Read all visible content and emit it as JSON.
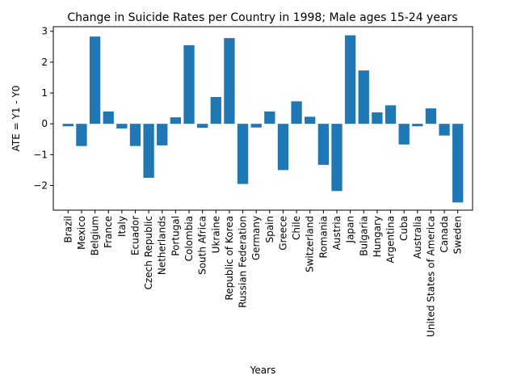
{
  "chart_data": {
    "type": "bar",
    "title": "Change in Suicide Rates per Country in 1998; Male ages 15-24 years",
    "xlabel": "Years",
    "ylabel": "ATE = Y1 - Y0",
    "ylim": [
      -2.8,
      3.15
    ],
    "yticks": [
      -2,
      -1,
      0,
      1,
      2,
      3
    ],
    "ytick_labels": [
      "−2",
      "−1",
      "0",
      "1",
      "2",
      "3"
    ],
    "grid": false,
    "bar_color": "#1f77b4",
    "categories": [
      "Brazil",
      "Mexico",
      "Belgium",
      "France",
      "Italy",
      "Ecuador",
      "Czech Republic",
      "Netherlands",
      "Portugal",
      "Colombia",
      "South Africa",
      "Ukraine",
      "Republic of Korea",
      "Russian Federation",
      "Germany",
      "Spain",
      "Greece",
      "Chile",
      "Switzerland",
      "Romania",
      "Austria",
      "Japan",
      "Bulgaria",
      "Hungary",
      "Argentina",
      "Cuba",
      "Australia",
      "United States of America",
      "Canada",
      "Sweden"
    ],
    "values": [
      -0.08,
      -0.72,
      2.83,
      0.4,
      -0.15,
      -0.72,
      -1.75,
      -0.7,
      0.21,
      2.55,
      -0.13,
      0.87,
      2.78,
      -1.95,
      -0.12,
      0.4,
      -1.5,
      0.73,
      0.23,
      -1.33,
      -2.18,
      2.87,
      1.73,
      0.37,
      0.6,
      -0.67,
      -0.08,
      0.5,
      -0.38,
      -2.55
    ]
  }
}
